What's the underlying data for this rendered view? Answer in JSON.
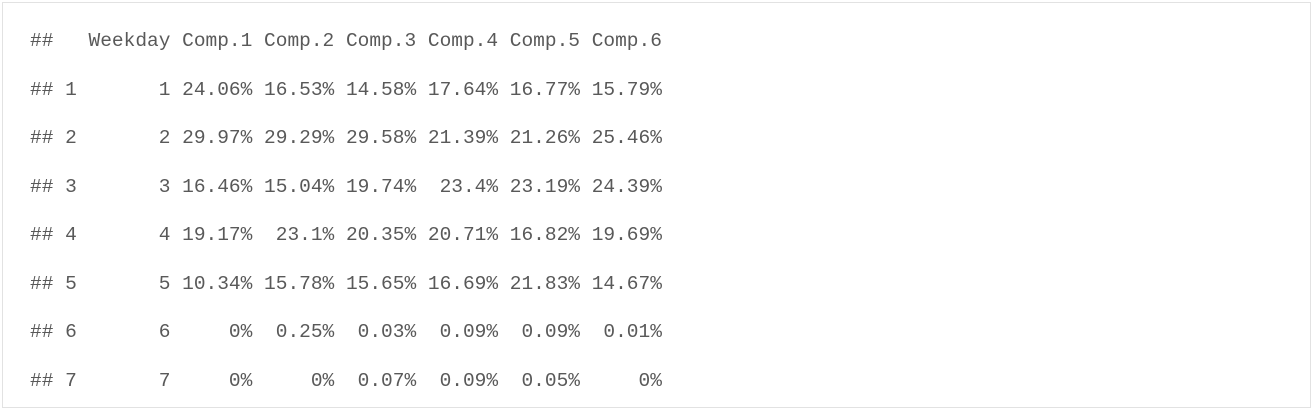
{
  "console_output": {
    "lines": [
      "##   Weekday Comp.1 Comp.2 Comp.3 Comp.4 Comp.5 Comp.6",
      "## 1       1 24.06% 16.53% 14.58% 17.64% 16.77% 15.79%",
      "## 2       2 29.97% 29.29% 29.58% 21.39% 21.26% 25.46%",
      "## 3       3 16.46% 15.04% 19.74%  23.4% 23.19% 24.39%",
      "## 4       4 19.17%  23.1% 20.35% 20.71% 16.82% 19.69%",
      "## 5       5 10.34% 15.78% 15.65% 16.69% 21.83% 14.67%",
      "## 6       6     0%  0.25%  0.03%  0.09%  0.09%  0.01%",
      "## 7       7     0%     0%  0.07%  0.09%  0.05%     0%"
    ]
  }
}
